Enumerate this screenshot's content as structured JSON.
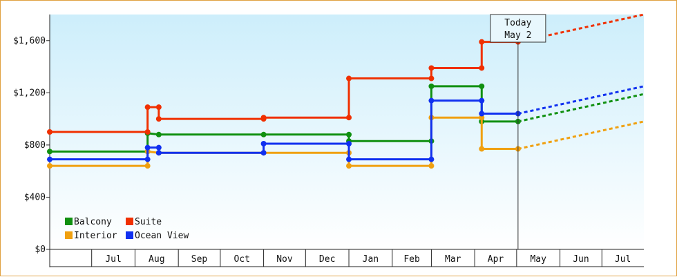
{
  "chart_data": {
    "type": "line",
    "step": true,
    "x_axis": {
      "type": "date",
      "range": [
        "2024-06-01",
        "2025-07-31"
      ],
      "month_labels": [
        "Jul",
        "Aug",
        "Sep",
        "Oct",
        "Nov",
        "Dec",
        "Jan",
        "Feb",
        "Mar",
        "Apr",
        "May",
        "Jun",
        "Jul"
      ]
    },
    "y_axis": {
      "range": [
        0,
        1800
      ],
      "ticks": [
        0,
        400,
        800,
        1200,
        1600
      ],
      "tick_labels": [
        "$0",
        "$400",
        "$800",
        "$1,200",
        "$1,600"
      ]
    },
    "grid": false,
    "legend_position": "bottom-left",
    "legend": [
      "Balcony",
      "Suite",
      "Interior",
      "Ocean View"
    ],
    "today": {
      "date": "2025-05-02",
      "label_line1": "Today",
      "label_line2": "May 2"
    },
    "series": [
      {
        "name": "Balcony",
        "color": "#109010",
        "points": [
          [
            "2024-06-01",
            750
          ],
          [
            "2024-08-10",
            750
          ],
          [
            "2024-08-10",
            890
          ],
          [
            "2024-08-18",
            880
          ],
          [
            "2024-11-01",
            880
          ],
          [
            "2025-01-01",
            880
          ],
          [
            "2025-01-01",
            830
          ],
          [
            "2025-03-01",
            830
          ],
          [
            "2025-03-01",
            1250
          ],
          [
            "2025-04-06",
            1250
          ],
          [
            "2025-04-06",
            980
          ],
          [
            "2025-05-02",
            980
          ]
        ],
        "projection": [
          [
            "2025-05-02",
            980
          ],
          [
            "2025-07-31",
            1190
          ]
        ]
      },
      {
        "name": "Suite",
        "color": "#f03000",
        "points": [
          [
            "2024-06-01",
            900
          ],
          [
            "2024-08-10",
            900
          ],
          [
            "2024-08-10",
            1090
          ],
          [
            "2024-08-18",
            1090
          ],
          [
            "2024-08-18",
            1000
          ],
          [
            "2024-11-01",
            1000
          ],
          [
            "2024-11-01",
            1010
          ],
          [
            "2025-01-01",
            1010
          ],
          [
            "2025-01-01",
            1310
          ],
          [
            "2025-03-01",
            1310
          ],
          [
            "2025-03-01",
            1390
          ],
          [
            "2025-04-06",
            1390
          ],
          [
            "2025-04-06",
            1590
          ],
          [
            "2025-05-02",
            1590
          ]
        ],
        "projection": [
          [
            "2025-05-02",
            1590
          ],
          [
            "2025-07-31",
            1800
          ]
        ]
      },
      {
        "name": "Interior",
        "color": "#f0a010",
        "points": [
          [
            "2024-06-01",
            640
          ],
          [
            "2024-08-10",
            640
          ],
          [
            "2024-08-10",
            750
          ],
          [
            "2024-08-18",
            740
          ],
          [
            "2024-11-01",
            740
          ],
          [
            "2025-01-01",
            740
          ],
          [
            "2025-01-01",
            640
          ],
          [
            "2025-03-01",
            640
          ],
          [
            "2025-03-01",
            1010
          ],
          [
            "2025-04-06",
            1010
          ],
          [
            "2025-04-06",
            770
          ],
          [
            "2025-05-02",
            770
          ]
        ],
        "projection": [
          [
            "2025-05-02",
            770
          ],
          [
            "2025-07-31",
            980
          ]
        ]
      },
      {
        "name": "Ocean View",
        "color": "#1030f0",
        "points": [
          [
            "2024-06-01",
            690
          ],
          [
            "2024-08-10",
            690
          ],
          [
            "2024-08-10",
            780
          ],
          [
            "2024-08-18",
            780
          ],
          [
            "2024-08-18",
            740
          ],
          [
            "2024-11-01",
            740
          ],
          [
            "2024-11-01",
            810
          ],
          [
            "2025-01-01",
            810
          ],
          [
            "2025-01-01",
            690
          ],
          [
            "2025-03-01",
            690
          ],
          [
            "2025-03-01",
            1140
          ],
          [
            "2025-04-06",
            1140
          ],
          [
            "2025-04-06",
            1040
          ],
          [
            "2025-05-02",
            1040
          ]
        ],
        "projection": [
          [
            "2025-05-02",
            1040
          ],
          [
            "2025-07-31",
            1250
          ]
        ]
      }
    ]
  }
}
